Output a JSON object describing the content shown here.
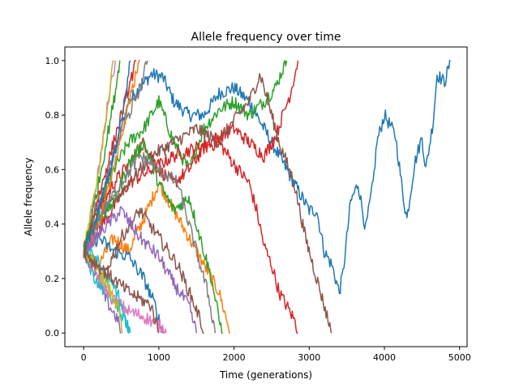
{
  "chart_data": {
    "type": "line",
    "title": "Allele frequency over time",
    "xlabel": "Time (generations)",
    "ylabel": "Allele frequency",
    "xlim": [
      -250,
      5100
    ],
    "ylim": [
      -0.05,
      1.05
    ],
    "xticks": [
      0,
      1000,
      2000,
      3000,
      4000,
      5000
    ],
    "yticks": [
      0.0,
      0.2,
      0.4,
      0.6,
      0.8,
      1.0
    ],
    "xtick_labels": [
      "0",
      "1000",
      "2000",
      "3000",
      "4000",
      "5000"
    ],
    "ytick_labels": [
      "0.0",
      "0.2",
      "0.4",
      "0.6",
      "0.8",
      "1.0"
    ],
    "grid": false,
    "legend": "none",
    "series": [
      {
        "color": "#1f77b4",
        "points": [
          [
            0,
            0.3
          ],
          [
            150,
            0.4
          ],
          [
            300,
            0.55
          ],
          [
            450,
            0.7
          ],
          [
            600,
            0.85
          ],
          [
            750,
            0.9
          ],
          [
            900,
            0.95
          ],
          [
            1050,
            0.94
          ],
          [
            1200,
            0.85
          ],
          [
            1400,
            0.8
          ],
          [
            1600,
            0.8
          ],
          [
            1800,
            0.88
          ],
          [
            2000,
            0.9
          ],
          [
            2200,
            0.85
          ],
          [
            2400,
            0.75
          ],
          [
            2600,
            0.65
          ],
          [
            2800,
            0.55
          ],
          [
            3000,
            0.45
          ],
          [
            3100,
            0.45
          ],
          [
            3200,
            0.3
          ],
          [
            3300,
            0.25
          ],
          [
            3400,
            0.15
          ],
          [
            3450,
            0.22
          ],
          [
            3550,
            0.48
          ],
          [
            3650,
            0.55
          ],
          [
            3750,
            0.38
          ],
          [
            3850,
            0.55
          ],
          [
            3900,
            0.7
          ],
          [
            4000,
            0.8
          ],
          [
            4100,
            0.75
          ],
          [
            4150,
            0.72
          ],
          [
            4250,
            0.5
          ],
          [
            4300,
            0.42
          ],
          [
            4400,
            0.62
          ],
          [
            4500,
            0.72
          ],
          [
            4550,
            0.6
          ],
          [
            4650,
            0.78
          ],
          [
            4700,
            0.95
          ],
          [
            4800,
            0.92
          ],
          [
            4880,
            1.0
          ]
        ]
      },
      {
        "color": "#ff7f0e",
        "points": [
          [
            0,
            0.3
          ],
          [
            200,
            0.25
          ],
          [
            400,
            0.35
          ],
          [
            600,
            0.3
          ],
          [
            800,
            0.42
          ],
          [
            1000,
            0.55
          ],
          [
            1200,
            0.45
          ],
          [
            1400,
            0.35
          ],
          [
            1600,
            0.25
          ],
          [
            1800,
            0.15
          ],
          [
            1900,
            0.05
          ],
          [
            1950,
            0.0
          ]
        ]
      },
      {
        "color": "#2ca02c",
        "points": [
          [
            0,
            0.3
          ],
          [
            200,
            0.45
          ],
          [
            400,
            0.6
          ],
          [
            600,
            0.7
          ],
          [
            800,
            0.75
          ],
          [
            1000,
            0.85
          ],
          [
            1200,
            0.7
          ],
          [
            1400,
            0.6
          ],
          [
            1600,
            0.75
          ],
          [
            1800,
            0.82
          ],
          [
            2000,
            0.85
          ],
          [
            2200,
            0.8
          ],
          [
            2400,
            0.85
          ],
          [
            2550,
            0.9
          ],
          [
            2650,
            0.97
          ],
          [
            2700,
            1.0
          ]
        ]
      },
      {
        "color": "#d62728",
        "points": [
          [
            0,
            0.3
          ],
          [
            200,
            0.45
          ],
          [
            400,
            0.55
          ],
          [
            600,
            0.62
          ],
          [
            800,
            0.7
          ],
          [
            1000,
            0.6
          ],
          [
            1200,
            0.55
          ],
          [
            1400,
            0.6
          ],
          [
            1600,
            0.68
          ],
          [
            1800,
            0.7
          ],
          [
            2000,
            0.62
          ],
          [
            2200,
            0.55
          ],
          [
            2300,
            0.45
          ],
          [
            2400,
            0.32
          ],
          [
            2500,
            0.25
          ],
          [
            2600,
            0.15
          ],
          [
            2700,
            0.1
          ],
          [
            2800,
            0.05
          ],
          [
            2850,
            0.0
          ]
        ]
      },
      {
        "color": "#d62728",
        "points": [
          [
            0,
            0.3
          ],
          [
            300,
            0.42
          ],
          [
            600,
            0.55
          ],
          [
            900,
            0.6
          ],
          [
            1200,
            0.65
          ],
          [
            1500,
            0.68
          ],
          [
            1800,
            0.72
          ],
          [
            2000,
            0.75
          ],
          [
            2200,
            0.7
          ],
          [
            2400,
            0.65
          ],
          [
            2550,
            0.72
          ],
          [
            2650,
            0.8
          ],
          [
            2750,
            0.88
          ],
          [
            2850,
            1.0
          ]
        ]
      },
      {
        "color": "#8c564b",
        "points": [
          [
            0,
            0.3
          ],
          [
            300,
            0.45
          ],
          [
            600,
            0.55
          ],
          [
            900,
            0.65
          ],
          [
            1200,
            0.7
          ],
          [
            1500,
            0.75
          ],
          [
            1800,
            0.7
          ],
          [
            2000,
            0.78
          ],
          [
            2200,
            0.85
          ],
          [
            2350,
            0.95
          ],
          [
            2450,
            0.85
          ],
          [
            2600,
            0.7
          ],
          [
            2800,
            0.55
          ],
          [
            2950,
            0.35
          ],
          [
            3100,
            0.2
          ],
          [
            3200,
            0.1
          ],
          [
            3300,
            0.0
          ]
        ]
      },
      {
        "color": "#7f7f7f",
        "points": [
          [
            0,
            0.3
          ],
          [
            150,
            0.45
          ],
          [
            300,
            0.55
          ],
          [
            450,
            0.7
          ],
          [
            600,
            0.8
          ],
          [
            750,
            0.9
          ],
          [
            850,
            1.0
          ]
        ]
      },
      {
        "color": "#e377c2",
        "points": [
          [
            0,
            0.3
          ],
          [
            150,
            0.5
          ],
          [
            250,
            0.7
          ],
          [
            350,
            0.9
          ],
          [
            420,
            1.0
          ]
        ]
      },
      {
        "color": "#9467bd",
        "points": [
          [
            0,
            0.3
          ],
          [
            150,
            0.22
          ],
          [
            300,
            0.12
          ],
          [
            450,
            0.05
          ],
          [
            500,
            0.0
          ]
        ]
      },
      {
        "color": "#17becf",
        "points": [
          [
            0,
            0.3
          ],
          [
            150,
            0.2
          ],
          [
            300,
            0.15
          ],
          [
            450,
            0.1
          ],
          [
            550,
            0.05
          ],
          [
            600,
            0.0
          ]
        ]
      },
      {
        "color": "#bcbd22",
        "points": [
          [
            0,
            0.3
          ],
          [
            100,
            0.45
          ],
          [
            200,
            0.6
          ],
          [
            300,
            0.8
          ],
          [
            350,
            0.9
          ],
          [
            400,
            1.0
          ]
        ]
      },
      {
        "color": "#1f77b4",
        "points": [
          [
            0,
            0.3
          ],
          [
            200,
            0.35
          ],
          [
            400,
            0.3
          ],
          [
            600,
            0.28
          ],
          [
            800,
            0.2
          ],
          [
            950,
            0.1
          ],
          [
            1050,
            0.0
          ]
        ]
      },
      {
        "color": "#2ca02c",
        "points": [
          [
            0,
            0.3
          ],
          [
            200,
            0.42
          ],
          [
            400,
            0.48
          ],
          [
            600,
            0.62
          ],
          [
            800,
            0.7
          ],
          [
            1000,
            0.55
          ],
          [
            1200,
            0.45
          ],
          [
            1400,
            0.5
          ],
          [
            1550,
            0.35
          ],
          [
            1700,
            0.2
          ],
          [
            1800,
            0.05
          ],
          [
            1850,
            0.0
          ]
        ]
      },
      {
        "color": "#8c564b",
        "points": [
          [
            0,
            0.3
          ],
          [
            250,
            0.2
          ],
          [
            500,
            0.35
          ],
          [
            750,
            0.45
          ],
          [
            1000,
            0.35
          ],
          [
            1250,
            0.25
          ],
          [
            1450,
            0.12
          ],
          [
            1550,
            0.05
          ],
          [
            1600,
            0.0
          ]
        ]
      },
      {
        "color": "#e377c2",
        "points": [
          [
            0,
            0.3
          ],
          [
            200,
            0.2
          ],
          [
            400,
            0.12
          ],
          [
            600,
            0.08
          ],
          [
            800,
            0.06
          ],
          [
            1000,
            0.03
          ],
          [
            1100,
            0.0
          ]
        ]
      },
      {
        "color": "#ff7f0e",
        "points": [
          [
            0,
            0.3
          ],
          [
            150,
            0.35
          ],
          [
            300,
            0.5
          ],
          [
            450,
            0.65
          ],
          [
            600,
            0.85
          ],
          [
            700,
            0.95
          ],
          [
            750,
            1.0
          ]
        ]
      },
      {
        "color": "#9467bd",
        "points": [
          [
            0,
            0.3
          ],
          [
            250,
            0.38
          ],
          [
            500,
            0.45
          ],
          [
            750,
            0.35
          ],
          [
            1000,
            0.28
          ],
          [
            1200,
            0.18
          ],
          [
            1400,
            0.1
          ],
          [
            1500,
            0.0
          ]
        ]
      },
      {
        "color": "#7f7f7f",
        "points": [
          [
            0,
            0.3
          ],
          [
            250,
            0.45
          ],
          [
            500,
            0.55
          ],
          [
            750,
            0.65
          ],
          [
            1000,
            0.6
          ],
          [
            1250,
            0.55
          ],
          [
            1450,
            0.35
          ],
          [
            1650,
            0.15
          ],
          [
            1750,
            0.0
          ]
        ]
      },
      {
        "color": "#17becf",
        "points": [
          [
            0,
            0.3
          ],
          [
            150,
            0.28
          ],
          [
            300,
            0.2
          ],
          [
            450,
            0.15
          ],
          [
            550,
            0.05
          ],
          [
            620,
            0.0
          ]
        ]
      },
      {
        "color": "#d62728",
        "points": [
          [
            0,
            0.3
          ],
          [
            150,
            0.45
          ],
          [
            300,
            0.6
          ],
          [
            450,
            0.75
          ],
          [
            550,
            0.85
          ],
          [
            650,
            0.95
          ],
          [
            700,
            1.0
          ]
        ]
      },
      {
        "color": "#bcbd22",
        "points": [
          [
            0,
            0.3
          ],
          [
            150,
            0.25
          ],
          [
            300,
            0.18
          ],
          [
            450,
            0.1
          ],
          [
            520,
            0.0
          ]
        ]
      },
      {
        "color": "#1f77b4",
        "points": [
          [
            0,
            0.3
          ],
          [
            150,
            0.4
          ],
          [
            300,
            0.55
          ],
          [
            450,
            0.7
          ],
          [
            550,
            0.85
          ],
          [
            620,
            1.0
          ]
        ]
      },
      {
        "color": "#2ca02c",
        "points": [
          [
            0,
            0.3
          ],
          [
            100,
            0.42
          ],
          [
            200,
            0.55
          ],
          [
            300,
            0.7
          ],
          [
            400,
            0.85
          ],
          [
            480,
            1.0
          ]
        ]
      },
      {
        "color": "#8c564b",
        "points": [
          [
            0,
            0.3
          ],
          [
            300,
            0.22
          ],
          [
            600,
            0.15
          ],
          [
            900,
            0.1
          ],
          [
            1000,
            0.0
          ]
        ]
      }
    ]
  }
}
